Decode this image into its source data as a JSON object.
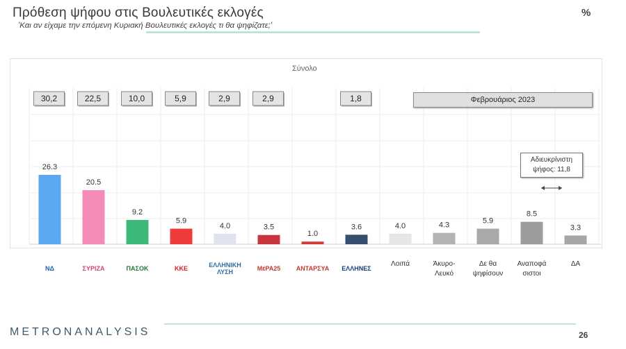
{
  "header": {
    "title": "Πρόθεση ψήφου στις Βουλευτικές εκλογές",
    "subtitle": "'Και αν είχαμε την επόμενη Κυριακή Βουλευτικές εκλογές τι θα ψηφίζατε;'",
    "unit": "%"
  },
  "chart_data": {
    "type": "bar",
    "label_total": "Σύνολο",
    "period": "Φεβρουάριος 2023",
    "categories": [
      "ΝΔ",
      "ΣΥΡΙΖΑ",
      "ΠΑΣΟΚ",
      "ΚΚΕ",
      "ΕΛΛΗΝΙΚΗ ΛΥΣΗ",
      "ΜέΡΑ25",
      "ΑΝΤΑΡΣΥΑ",
      "ΕΛΛΗΝΕΣ",
      "Λοιπά",
      "Άκυρο-Λευκό",
      "Δε θα ψηφίσουν",
      "Αναποφάσιστοι",
      "ΔΑ"
    ],
    "values": [
      26.3,
      20.5,
      9.2,
      5.9,
      4.0,
      3.5,
      1.0,
      3.6,
      4.0,
      4.3,
      5.9,
      8.5,
      3.3
    ],
    "value_labels": [
      "26.3",
      "20.5",
      "9.2",
      "5.9",
      "4.0",
      "3.5",
      "1.0",
      "3.6",
      "4.0",
      "4.3",
      "5.9",
      "8.5",
      "3.3"
    ],
    "reduced_values": [
      "30,2",
      "22,5",
      "10,0",
      "5,9",
      "2,9",
      "2,9",
      "",
      "1,8",
      "",
      "",
      "",
      "",
      ""
    ],
    "colors": [
      "#5aa9f0",
      "#f58bb8",
      "#3cb878",
      "#ee3b3b",
      "#dfe3f0",
      "#c9343f",
      "#d33a3a",
      "#34506e",
      "#e6e6e6",
      "#b3b3b3",
      "#a9a9a9",
      "#9c9c9c",
      "#a6a6a6"
    ],
    "ylim": [
      0,
      30
    ],
    "note": [
      "Αδιευκρίνιστη",
      "ψήφος: 11,8"
    ]
  },
  "logos": [
    {
      "text": "ΝΔ",
      "color": "#1f5fb0"
    },
    {
      "text": "ΣΥΡΙΖΑ",
      "color": "#d2427a"
    },
    {
      "text": "ΠΑΣΟΚ",
      "color": "#1e7d3b"
    },
    {
      "text": "ΚΚΕ",
      "color": "#d21f1f"
    },
    {
      "text": "ΕΛΛΗΝΙΚΗ ΛΥΣΗ",
      "color": "#2b6ca3"
    },
    {
      "text": "ΜέΡΑ25",
      "color": "#c0392b"
    },
    {
      "text": "ΑΝΤΑΡΣΥΑ",
      "color": "#c0392b"
    },
    {
      "text": "ΕΛΛΗΝΕΣ",
      "color": "#1a3c7a"
    }
  ],
  "text_categories": [
    "Λοιπά",
    "Άκυρο-\nΛευκό",
    "Δε θα\nψηφίσουν",
    "Αναποφά\nσιστοι",
    "ΔΑ"
  ],
  "footer": {
    "brand": "METRONANALYSIS",
    "page": "26"
  }
}
